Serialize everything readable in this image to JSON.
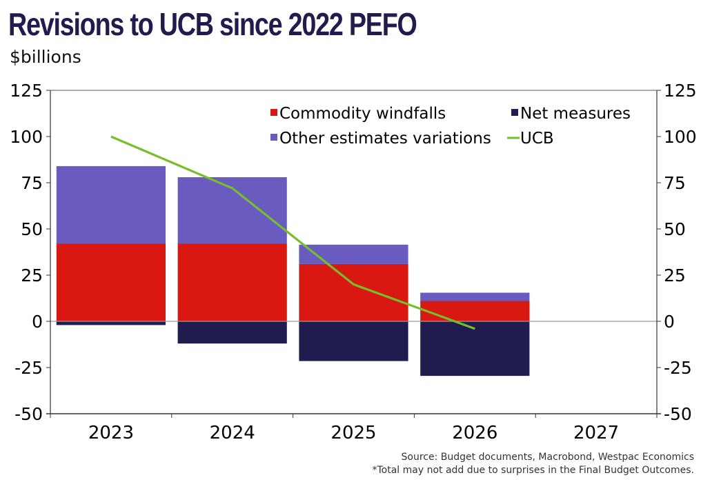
{
  "header": {
    "title": "Revisions to UCB since 2022 PEFO",
    "subtitle": "$billions"
  },
  "footnotes": {
    "source": "Source: Budget documents, Macrobond, Westpac Economics",
    "note": "*Total may not add due to surprises in the Final Budget Outcomes."
  },
  "chart_data": {
    "type": "bar",
    "stacked": true,
    "title": "Revisions to UCB since 2022 PEFO",
    "ylabel": "$billions",
    "xlabel": "",
    "categories": [
      "2023",
      "2024",
      "2025",
      "2026",
      "2027"
    ],
    "ylim": [
      -50,
      125
    ],
    "yticks": [
      125,
      100,
      75,
      50,
      25,
      0,
      -25,
      -50
    ],
    "ytick_labels": [
      "125",
      "100",
      "75",
      "50",
      "25",
      "0",
      "-25",
      "-50"
    ],
    "y2lim": [
      -50,
      125
    ],
    "grid": false,
    "legend_position": "top-right",
    "series": [
      {
        "name": "Commodity windfalls",
        "type": "bar",
        "color": "#d91812",
        "values": [
          42,
          42,
          31,
          11,
          null
        ]
      },
      {
        "name": "Other estimates variations",
        "type": "bar",
        "color": "#6a5bc0",
        "values": [
          42,
          36,
          10.5,
          4.5,
          null
        ]
      },
      {
        "name": "Net measures",
        "type": "bar",
        "color": "#201c50",
        "values": [
          -2,
          -12,
          -21.5,
          -29.5,
          null
        ]
      },
      {
        "name": "UCB",
        "type": "line",
        "color": "#76be2a",
        "values": [
          100,
          72,
          20,
          -4,
          null
        ]
      }
    ],
    "legend": [
      {
        "label": "Commodity windfalls",
        "color": "#d91812",
        "marker": "square"
      },
      {
        "label": "Net measures",
        "color": "#201c50",
        "marker": "square"
      },
      {
        "label": "Other estimates variations",
        "color": "#6a5bc0",
        "marker": "square"
      },
      {
        "label": "UCB",
        "color": "#76be2a",
        "marker": "line"
      }
    ]
  }
}
